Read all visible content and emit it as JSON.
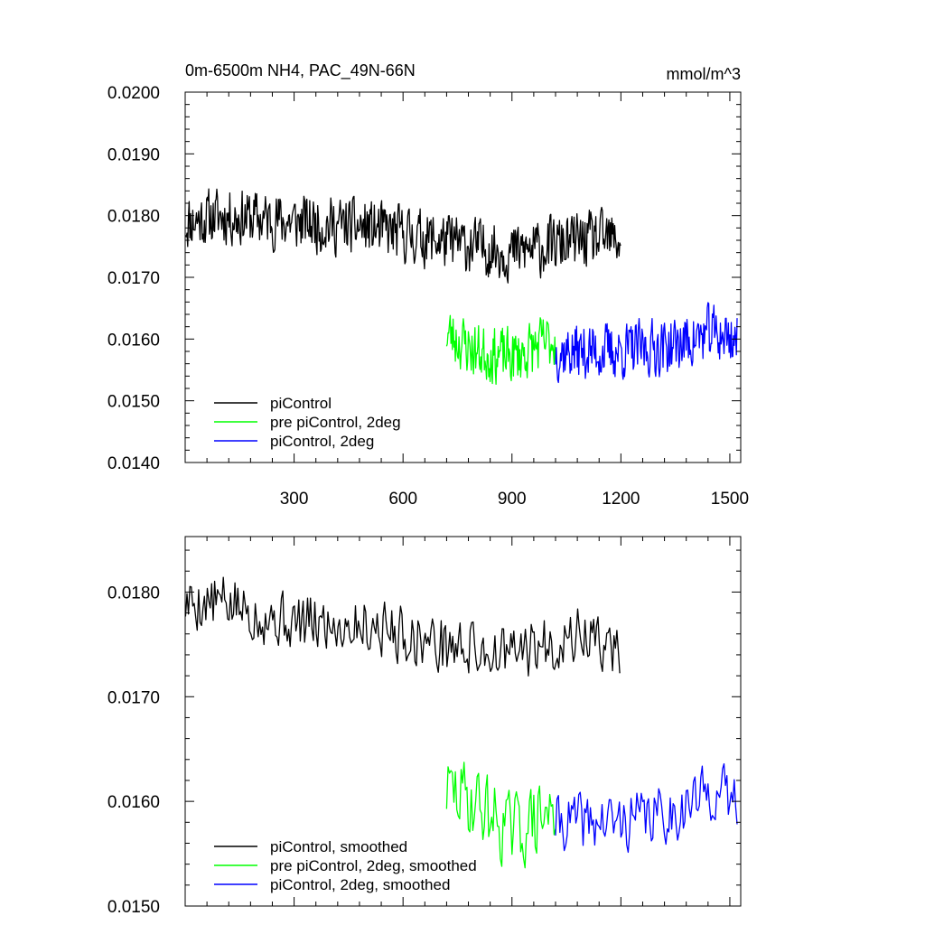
{
  "colors": {
    "black": "#000000",
    "green": "#00ff00",
    "blue": "#0000ff"
  },
  "chart_data": [
    {
      "type": "line",
      "title": "0m-6500m NH4, PAC_49N-66N",
      "units": "mmol/m^3",
      "xlim": [
        0,
        1530
      ],
      "ylim": [
        0.014,
        0.02
      ],
      "xticks": [
        300,
        600,
        900,
        1200,
        1500
      ],
      "xtick_labels": [
        "300",
        "600",
        "900",
        "1200",
        "1500"
      ],
      "yticks": [
        0.014,
        0.015,
        0.016,
        0.017,
        0.018,
        0.019,
        0.02
      ],
      "ytick_labels": [
        "0.0140",
        "0.0150",
        "0.0160",
        "0.0170",
        "0.0180",
        "0.0190",
        "0.0200"
      ],
      "legend_position": "bottom-left",
      "series": [
        {
          "name": "piControl",
          "color": "#000000",
          "x_start": 1,
          "x_end": 1200,
          "step": 2,
          "knots": [
            [
              0,
              0.0179
            ],
            [
              100,
              0.018
            ],
            [
              300,
              0.0179
            ],
            [
              500,
              0.0178
            ],
            [
              700,
              0.0176
            ],
            [
              900,
              0.0174
            ],
            [
              1000,
              0.0175
            ],
            [
              1100,
              0.0176
            ],
            [
              1200,
              0.0176
            ]
          ],
          "noise": 0.0005,
          "seed": 11
        },
        {
          "name": "pre piControl, 2deg",
          "color": "#00ff00",
          "x_start": 720,
          "x_end": 1020,
          "step": 2,
          "knots": [
            [
              720,
              0.0161
            ],
            [
              800,
              0.0158
            ],
            [
              900,
              0.0157
            ],
            [
              1020,
              0.016
            ]
          ],
          "noise": 0.0005,
          "seed": 23
        },
        {
          "name": "piControl, 2deg",
          "color": "#0000ff",
          "x_start": 1020,
          "x_end": 1520,
          "step": 2,
          "knots": [
            [
              1020,
              0.0158
            ],
            [
              1200,
              0.0158
            ],
            [
              1350,
              0.0159
            ],
            [
              1450,
              0.0161
            ],
            [
              1520,
              0.016
            ]
          ],
          "noise": 0.0005,
          "seed": 37
        }
      ]
    },
    {
      "type": "line",
      "title": "",
      "units": "",
      "xlim": [
        0,
        1530
      ],
      "ylim": [
        0.015,
        0.01853
      ],
      "xticks": [
        300,
        600,
        900,
        1200,
        1500
      ],
      "xtick_labels": [],
      "yticks": [
        0.015,
        0.016,
        0.017,
        0.018
      ],
      "ytick_labels": [
        "0.0150",
        "0.0160",
        "0.0170",
        "0.0180"
      ],
      "legend_position": "bottom-left",
      "series": [
        {
          "name": "piControl, smoothed",
          "color": "#000000",
          "x_start": 1,
          "x_end": 1200,
          "step": 4,
          "knots": [
            [
              0,
              0.0179
            ],
            [
              100,
              0.0179
            ],
            [
              300,
              0.0177
            ],
            [
              500,
              0.0177
            ],
            [
              700,
              0.0175
            ],
            [
              900,
              0.0174
            ],
            [
              1000,
              0.0175
            ],
            [
              1100,
              0.0176
            ],
            [
              1200,
              0.0174
            ]
          ],
          "noise": 0.0003,
          "seed": 5
        },
        {
          "name": "pre piControl, 2deg, smoothed",
          "color": "#00ff00",
          "x_start": 720,
          "x_end": 1020,
          "step": 4,
          "knots": [
            [
              720,
              0.0161
            ],
            [
              800,
              0.016
            ],
            [
              900,
              0.0157
            ],
            [
              1020,
              0.0159
            ]
          ],
          "noise": 0.0004,
          "seed": 29
        },
        {
          "name": "piControl, 2deg, smoothed",
          "color": "#0000ff",
          "x_start": 1020,
          "x_end": 1520,
          "step": 4,
          "knots": [
            [
              1020,
              0.0158
            ],
            [
              1200,
              0.0158
            ],
            [
              1350,
              0.0159
            ],
            [
              1450,
              0.0161
            ],
            [
              1520,
              0.016
            ]
          ],
          "noise": 0.0003,
          "seed": 41
        }
      ]
    }
  ]
}
